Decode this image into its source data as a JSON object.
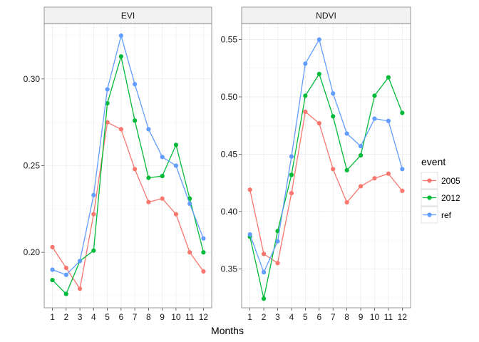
{
  "chart_data": {
    "type": "line",
    "xlabel": "Months",
    "ylabel": "",
    "x": [
      1,
      2,
      3,
      4,
      5,
      6,
      7,
      8,
      9,
      10,
      11,
      12
    ],
    "legend": {
      "title": "event",
      "position": "right",
      "entries": [
        "2005",
        "2012",
        "ref"
      ]
    },
    "colors": {
      "2005": "#F8766D",
      "2012": "#00BA38",
      "ref": "#619CFF"
    },
    "grid": true,
    "panels": [
      {
        "title": "EVI",
        "ylim": [
          0.168,
          0.332
        ],
        "yticks": [
          0.2,
          0.25,
          0.3
        ],
        "ytick_labels": [
          "0.20",
          "0.25",
          "0.30"
        ],
        "series": [
          {
            "name": "2005",
            "values": [
              0.203,
              0.191,
              0.179,
              0.222,
              0.275,
              0.271,
              0.248,
              0.229,
              0.231,
              0.222,
              0.2,
              0.189
            ]
          },
          {
            "name": "2012",
            "values": [
              0.184,
              0.176,
              0.195,
              0.201,
              0.286,
              0.313,
              0.276,
              0.243,
              0.244,
              0.262,
              0.231,
              0.2
            ]
          },
          {
            "name": "ref",
            "values": [
              0.19,
              0.187,
              0.195,
              0.233,
              0.294,
              0.325,
              0.297,
              0.271,
              0.255,
              0.25,
              0.228,
              0.208
            ]
          }
        ]
      },
      {
        "title": "NDVI",
        "ylim": [
          0.316,
          0.564
        ],
        "yticks": [
          0.35,
          0.4,
          0.45,
          0.5,
          0.55
        ],
        "ytick_labels": [
          "0.35",
          "0.40",
          "0.45",
          "0.50",
          "0.55"
        ],
        "series": [
          {
            "name": "2005",
            "values": [
              0.419,
              0.363,
              0.355,
              0.416,
              0.487,
              0.477,
              0.437,
              0.408,
              0.422,
              0.429,
              0.433,
              0.418
            ]
          },
          {
            "name": "2012",
            "values": [
              0.378,
              0.324,
              0.383,
              0.432,
              0.501,
              0.52,
              0.483,
              0.436,
              0.449,
              0.501,
              0.517,
              0.486
            ]
          },
          {
            "name": "ref",
            "values": [
              0.38,
              0.347,
              0.374,
              0.448,
              0.529,
              0.55,
              0.503,
              0.468,
              0.457,
              0.481,
              0.479,
              0.437
            ]
          }
        ]
      }
    ]
  }
}
